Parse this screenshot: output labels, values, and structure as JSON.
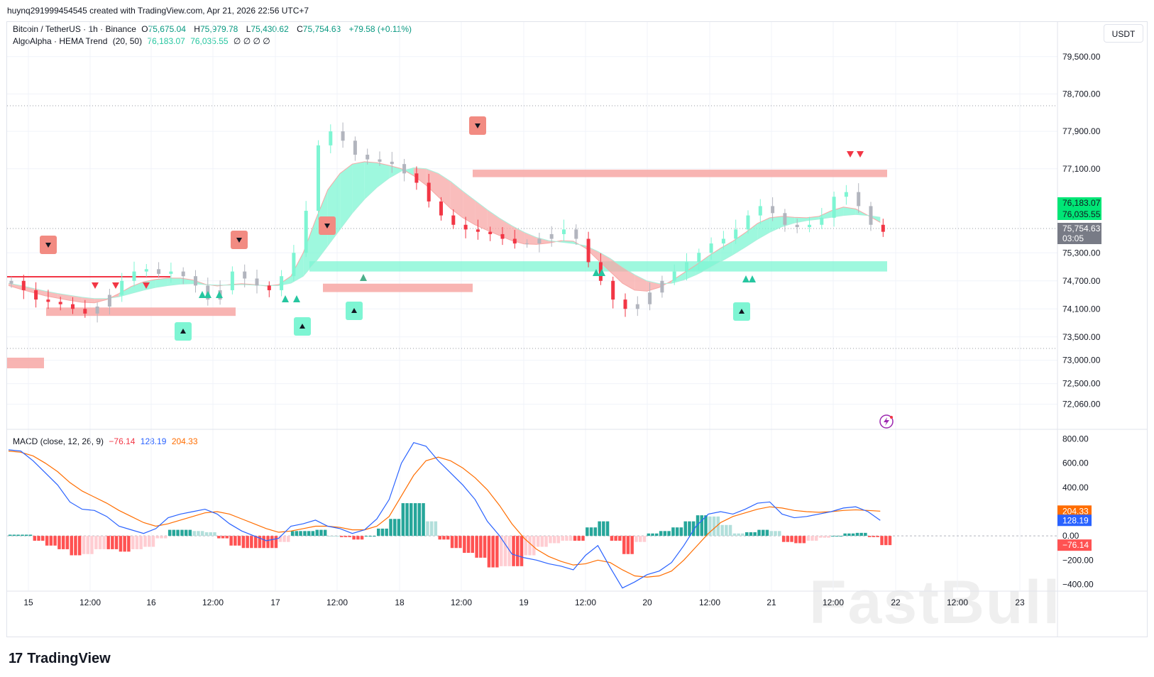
{
  "header": {
    "credit": "huynq291999454545 created with TradingView.com, Apr 21, 2026 22:56 UTC+7",
    "currency_button": "USDT",
    "brand": "TradingView",
    "watermark": "FastBull"
  },
  "legend_price": {
    "symbol": "Bitcoin / TetherUS · 1h · Binance",
    "o_label": "O",
    "o": "75,675.04",
    "h_label": "H",
    "h": "75,979.78",
    "l_label": "L",
    "l": "75,430.62",
    "c_label": "C",
    "c": "75,754.63",
    "change": "+79.58 (+0.11%)"
  },
  "legend_indicator": {
    "name": "AlgoAlpha · HEMA Trend",
    "params": "(20, 50)",
    "v1": "76,183.07",
    "v2": "76,035.55",
    "extras": "∅ ∅ ∅ ∅"
  },
  "legend_macd": {
    "name": "MACD (close, 12, 26, 9)",
    "hist": "−76.14",
    "macd": "128.19",
    "signal": "204.33"
  },
  "colors": {
    "up": "#26c6a0",
    "down": "#f23645",
    "up_soft": "#7ef5d3",
    "down_soft": "#f7a7a5",
    "grey_candle": "#b2b5be",
    "macd_line": "#2962ff",
    "signal_line": "#ff6d00",
    "hist_up_strong": "#26a69a",
    "hist_up_weak": "#b2dfdb",
    "hist_down_strong": "#ff5252",
    "hist_down_weak": "#ffcdd2"
  },
  "chart_data": [
    {
      "type": "candlestick",
      "title": "Bitcoin / TetherUS · 1h · Binance",
      "y_axis_ticks": [
        "79,500.00",
        "78,700.00",
        "77,900.00",
        "77,100.00",
        "75,300.00",
        "74,700.00",
        "74,100.00",
        "73,500.00",
        "73,000.00",
        "72,500.00",
        "72,060.00"
      ],
      "x_axis_ticks": [
        "15",
        "12:00",
        "16",
        "12:00",
        "17",
        "12:00",
        "18",
        "12:00",
        "19",
        "12:00",
        "20",
        "12:00",
        "21",
        "12:00",
        "22",
        "12:00",
        "23"
      ],
      "price_labels": {
        "hema_fast": "76,183.07",
        "hema_slow": "76,035.55",
        "last": "75,754.63",
        "countdown": "03:05"
      },
      "close_path": [
        74700,
        74500,
        74300,
        74250,
        74200,
        74100,
        74000,
        74150,
        74400,
        74700,
        74900,
        74950,
        74850,
        74900,
        74800,
        74600,
        74300,
        74500,
        74900,
        74750,
        74600,
        74500,
        74800,
        75300,
        76200,
        77600,
        77900,
        77700,
        77400,
        77300,
        77250,
        77200,
        77000,
        76800,
        76400,
        76100,
        75900,
        75800,
        75750,
        75700,
        75600,
        75500,
        75500,
        75600,
        75700,
        75800,
        75600,
        75100,
        74700,
        74300,
        74100,
        74200,
        74450,
        74700,
        74900,
        75100,
        75300,
        75500,
        75600,
        75800,
        76100,
        76300,
        76150,
        75900,
        75850,
        75900,
        76050,
        76500,
        76600,
        76300,
        75900,
        75750
      ],
      "hema_fast": [
        74600,
        74520,
        74450,
        74380,
        74330,
        74280,
        74240,
        74230,
        74300,
        74430,
        74580,
        74680,
        74730,
        74760,
        74760,
        74720,
        74630,
        74590,
        74620,
        74640,
        74620,
        74590,
        74620,
        74800,
        75300,
        76000,
        76650,
        77000,
        77200,
        77250,
        77230,
        77170,
        77100,
        76950,
        76750,
        76500,
        76250,
        76050,
        75900,
        75780,
        75670,
        75560,
        75490,
        75480,
        75510,
        75560,
        75550,
        75400,
        75150,
        74900,
        74650,
        74500,
        74480,
        74560,
        74700,
        74870,
        75040,
        75230,
        75400,
        75550,
        75730,
        75930,
        76050,
        76080,
        76060,
        76050,
        76080,
        76200,
        76280,
        76240,
        76100,
        75950
      ],
      "hema_slow": [
        74650,
        74600,
        74540,
        74480,
        74430,
        74390,
        74350,
        74320,
        74320,
        74360,
        74430,
        74500,
        74560,
        74600,
        74630,
        74640,
        74620,
        74610,
        74610,
        74620,
        74610,
        74600,
        74600,
        74650,
        74800,
        75100,
        75450,
        75800,
        76150,
        76450,
        76700,
        76900,
        77050,
        77120,
        77100,
        77000,
        76830,
        76620,
        76420,
        76220,
        76040,
        75880,
        75740,
        75630,
        75560,
        75530,
        75500,
        75450,
        75330,
        75180,
        75000,
        74830,
        74700,
        74640,
        74650,
        74720,
        74830,
        74960,
        75110,
        75260,
        75420,
        75590,
        75740,
        75860,
        75940,
        75990,
        76020,
        76060,
        76100,
        76120,
        76100,
        76060
      ],
      "resistance_zones": [
        [
          73950,
          74130
        ],
        [
          74460,
          74640
        ],
        [
          76920,
          77080
        ]
      ],
      "support_zones": [
        [
          74900,
          75120
        ]
      ],
      "markers_sell": 9,
      "markers_buy": 10
    },
    {
      "type": "line",
      "title": "MACD (close, 12, 26, 9)",
      "y_axis_ticks": [
        "800.00",
        "600.00",
        "400.00",
        "200.00",
        "0.00",
        "−200.00",
        "−400.00"
      ],
      "ylim": [
        -450,
        850
      ],
      "last_labels": {
        "signal": "204.33",
        "macd": "128.19",
        "hist": "−76.14"
      },
      "macd": [
        710,
        700,
        620,
        520,
        420,
        280,
        220,
        210,
        160,
        80,
        50,
        20,
        60,
        150,
        180,
        200,
        220,
        180,
        100,
        40,
        0,
        -40,
        -20,
        80,
        100,
        130,
        80,
        60,
        20,
        50,
        140,
        300,
        600,
        770,
        740,
        620,
        520,
        420,
        300,
        120,
        0,
        -150,
        -180,
        -200,
        -230,
        -250,
        -280,
        -160,
        -80,
        -260,
        -430,
        -380,
        -320,
        -290,
        -220,
        -80,
        80,
        180,
        200,
        180,
        220,
        270,
        280,
        180,
        150,
        160,
        180,
        200,
        230,
        240,
        200,
        128
      ],
      "signal": [
        700,
        690,
        660,
        600,
        530,
        440,
        370,
        320,
        270,
        210,
        160,
        110,
        80,
        100,
        130,
        160,
        190,
        200,
        180,
        140,
        100,
        60,
        30,
        40,
        60,
        80,
        80,
        70,
        50,
        50,
        80,
        160,
        330,
        500,
        620,
        650,
        620,
        560,
        480,
        380,
        250,
        100,
        -20,
        -110,
        -170,
        -210,
        -240,
        -230,
        -200,
        -220,
        -280,
        -330,
        -340,
        -330,
        -290,
        -200,
        -90,
        20,
        110,
        160,
        190,
        220,
        240,
        230,
        210,
        200,
        195,
        200,
        210,
        215,
        210,
        204
      ],
      "histogram": [
        10,
        10,
        -40,
        -80,
        -110,
        -160,
        -150,
        -110,
        -110,
        -130,
        -110,
        -90,
        -20,
        50,
        50,
        40,
        30,
        -20,
        -80,
        -100,
        -100,
        -100,
        -50,
        40,
        40,
        50,
        0,
        -10,
        -30,
        0,
        60,
        140,
        270,
        270,
        120,
        -30,
        -100,
        -140,
        -180,
        -260,
        -250,
        -250,
        -160,
        -90,
        -60,
        -40,
        -40,
        70,
        120,
        -40,
        -150,
        -50,
        20,
        40,
        70,
        120,
        170,
        160,
        90,
        20,
        30,
        50,
        40,
        -50,
        -60,
        -40,
        -15,
        0,
        20,
        25,
        -10,
        -76
      ]
    }
  ]
}
